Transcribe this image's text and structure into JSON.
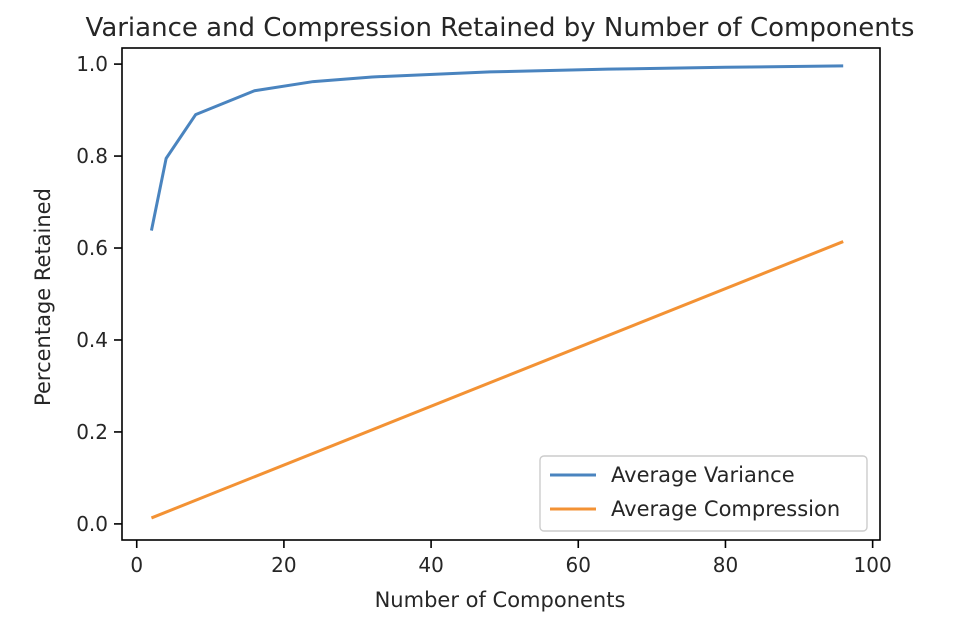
{
  "chart_data": {
    "type": "line",
    "title": "Variance and Compression Retained by Number of Components",
    "xlabel": "Number of Components",
    "ylabel": "Percentage Retained",
    "xlim": [
      -2,
      101
    ],
    "ylim": [
      -0.035,
      1.035
    ],
    "xticks": [
      0,
      20,
      40,
      60,
      80,
      100
    ],
    "xtick_labels": [
      "0",
      "20",
      "40",
      "60",
      "80",
      "100"
    ],
    "yticks": [
      0.0,
      0.2,
      0.4,
      0.6,
      0.8,
      1.0
    ],
    "ytick_labels": [
      "0.0",
      "0.2",
      "0.4",
      "0.6",
      "0.8",
      "1.0"
    ],
    "grid": false,
    "legend_position": "lower-right",
    "series": [
      {
        "name": "Average Variance",
        "color": "#4a84bf",
        "x": [
          2,
          4,
          8,
          16,
          24,
          32,
          48,
          64,
          80,
          96
        ],
        "y": [
          0.638,
          0.795,
          0.89,
          0.942,
          0.962,
          0.972,
          0.983,
          0.989,
          0.993,
          0.996
        ]
      },
      {
        "name": "Average Compression",
        "color": "#f39234",
        "x": [
          2,
          96
        ],
        "y": [
          0.013,
          0.614
        ]
      }
    ]
  }
}
